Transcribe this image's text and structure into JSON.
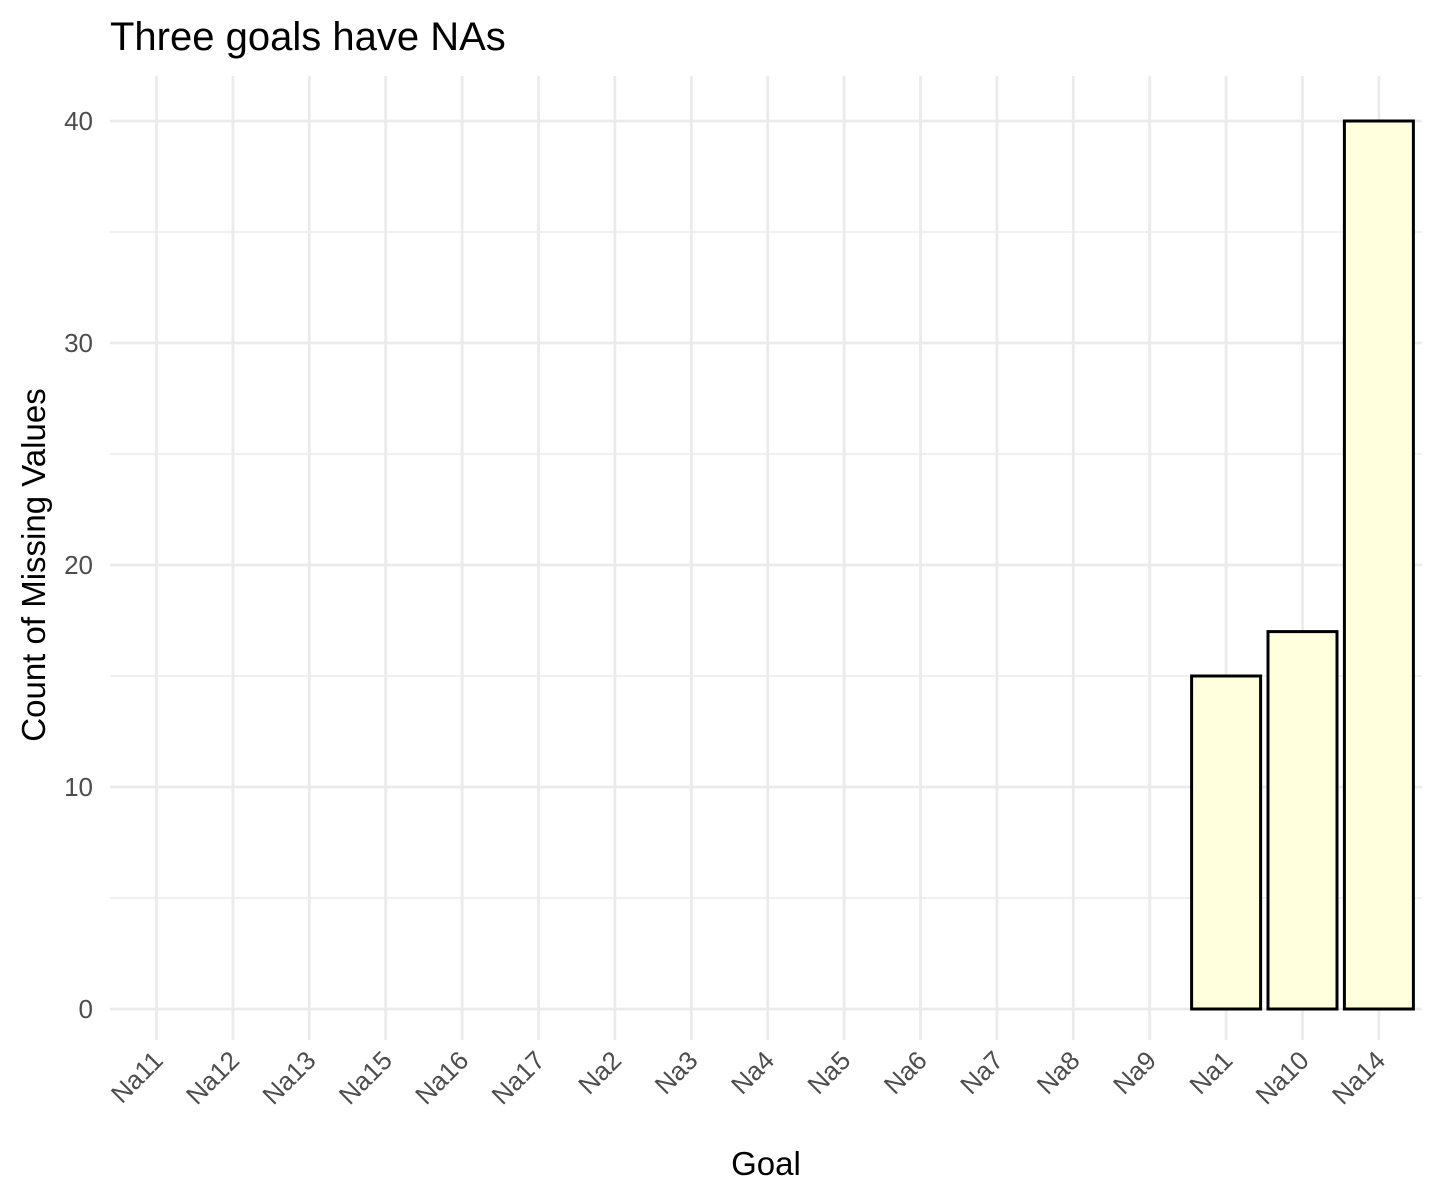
{
  "chart_data": {
    "type": "bar",
    "title": "Three goals have NAs",
    "xlabel": "Goal",
    "ylabel": "Count of Missing Values",
    "categories": [
      "Na11",
      "Na12",
      "Na13",
      "Na15",
      "Na16",
      "Na17",
      "Na2",
      "Na3",
      "Na4",
      "Na5",
      "Na6",
      "Na7",
      "Na8",
      "Na9",
      "Na1",
      "Na10",
      "Na14"
    ],
    "values": [
      0,
      0,
      0,
      0,
      0,
      0,
      0,
      0,
      0,
      0,
      0,
      0,
      0,
      0,
      15,
      17,
      40
    ],
    "ylim": [
      0,
      40
    ],
    "yticks": [
      0,
      10,
      20,
      30,
      40
    ],
    "grid": true,
    "legend": "none",
    "bar_fill": "#ffffdd",
    "bar_outline": "#000000"
  }
}
